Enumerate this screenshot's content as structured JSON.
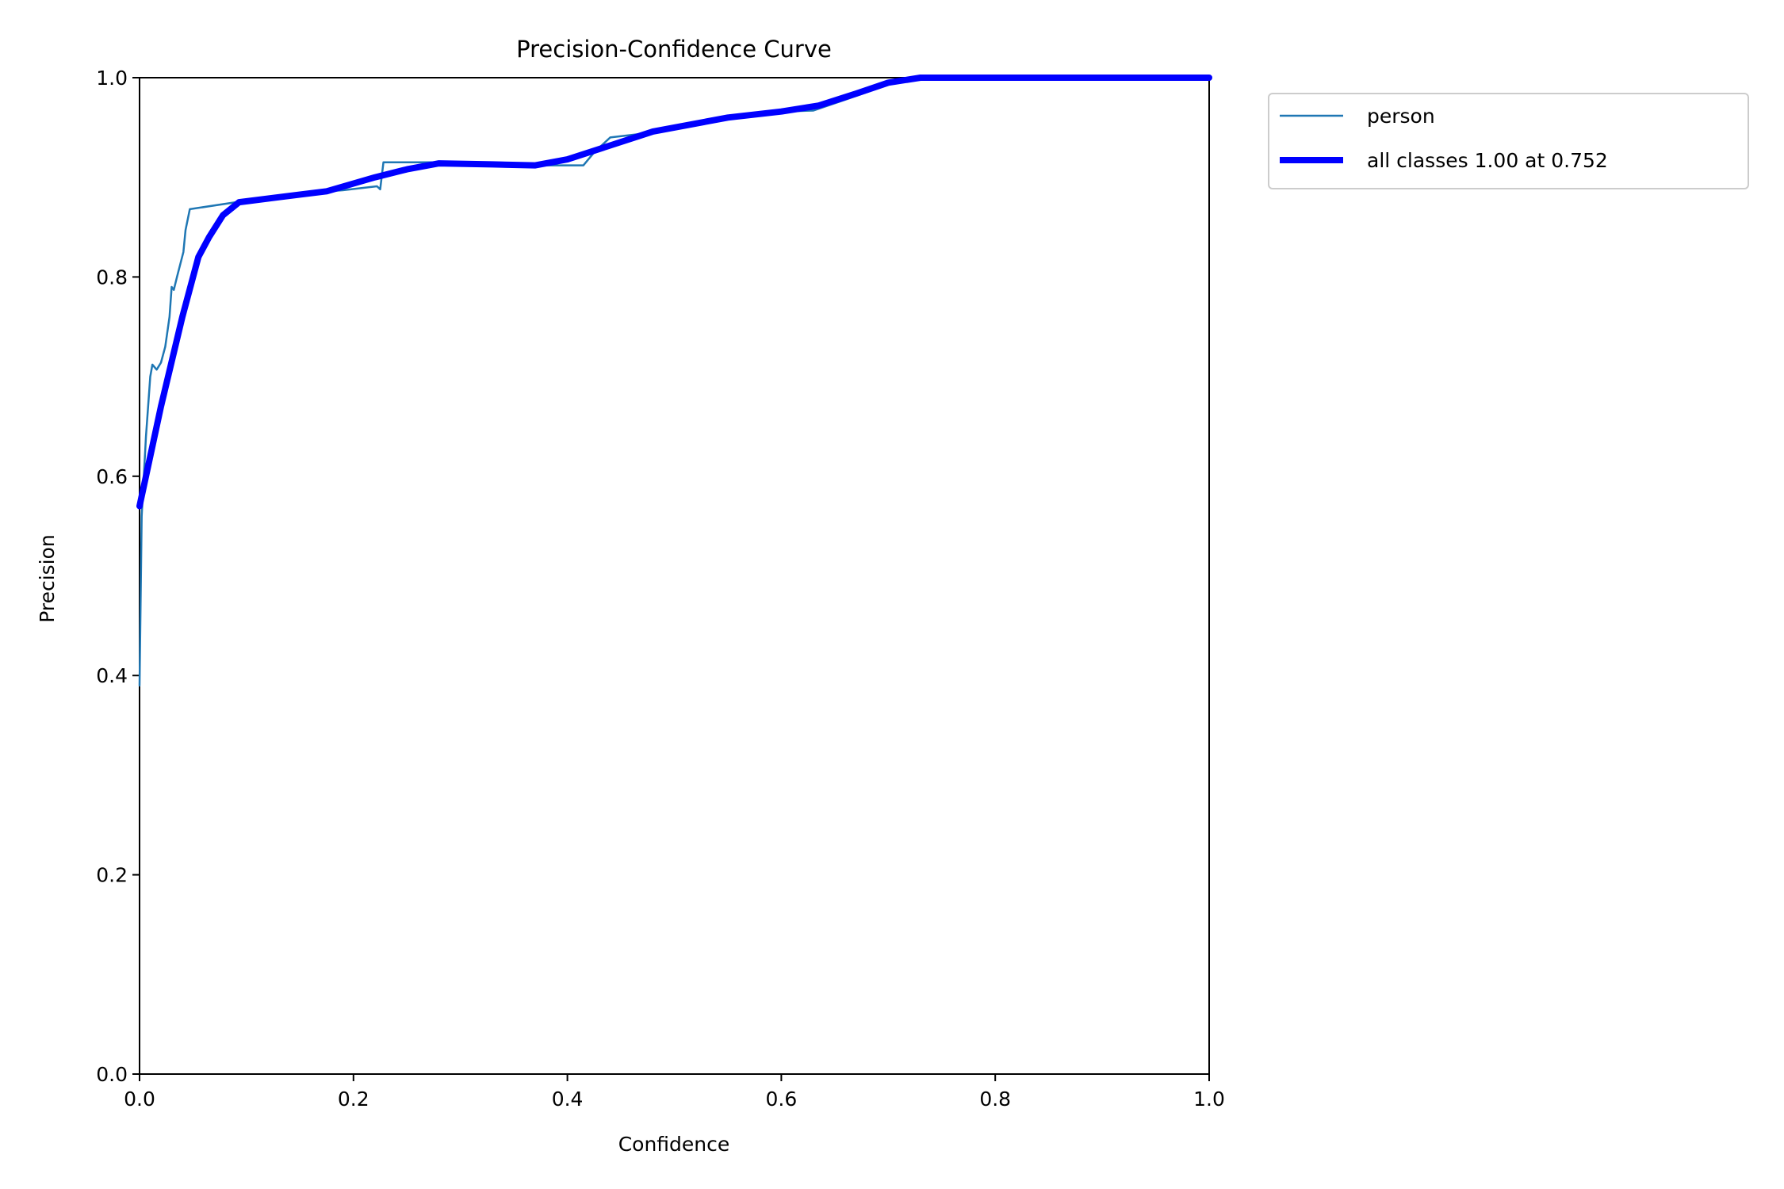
{
  "chart_data": {
    "type": "line",
    "title": "Precision-Confidence Curve",
    "xlabel": "Confidence",
    "ylabel": "Precision",
    "xlim": [
      0,
      1
    ],
    "ylim": [
      0,
      1
    ],
    "x_ticks": [
      "0.0",
      "0.2",
      "0.4",
      "0.6",
      "0.8",
      "1.0"
    ],
    "y_ticks": [
      "0.0",
      "0.2",
      "0.4",
      "0.6",
      "0.8",
      "1.0"
    ],
    "grid": false,
    "legend_position": "outside-upper-right",
    "series": [
      {
        "name": "person",
        "color": "#1f77b4",
        "line_weight": "thin",
        "points": [
          [
            0.0,
            0.39
          ],
          [
            0.002,
            0.56
          ],
          [
            0.006,
            0.64
          ],
          [
            0.01,
            0.7
          ],
          [
            0.012,
            0.712
          ],
          [
            0.016,
            0.707
          ],
          [
            0.02,
            0.714
          ],
          [
            0.024,
            0.73
          ],
          [
            0.028,
            0.76
          ],
          [
            0.03,
            0.79
          ],
          [
            0.032,
            0.787
          ],
          [
            0.035,
            0.8
          ],
          [
            0.041,
            0.825
          ],
          [
            0.043,
            0.847
          ],
          [
            0.047,
            0.868
          ],
          [
            0.09,
            0.875
          ],
          [
            0.15,
            0.884
          ],
          [
            0.19,
            0.887
          ],
          [
            0.222,
            0.891
          ],
          [
            0.225,
            0.888
          ],
          [
            0.228,
            0.915
          ],
          [
            0.3,
            0.915
          ],
          [
            0.37,
            0.912
          ],
          [
            0.415,
            0.912
          ],
          [
            0.425,
            0.925
          ],
          [
            0.44,
            0.94
          ],
          [
            0.48,
            0.945
          ],
          [
            0.55,
            0.96
          ],
          [
            0.6,
            0.966
          ],
          [
            0.63,
            0.967
          ],
          [
            0.66,
            0.978
          ],
          [
            0.7,
            0.993
          ],
          [
            0.73,
            1.0
          ],
          [
            0.8,
            1.0
          ],
          [
            1.0,
            1.0
          ]
        ]
      },
      {
        "name": "all classes 1.00 at 0.752",
        "color": "#0000ff",
        "line_weight": "thick",
        "points": [
          [
            0.0,
            0.57
          ],
          [
            0.02,
            0.67
          ],
          [
            0.04,
            0.76
          ],
          [
            0.055,
            0.82
          ],
          [
            0.065,
            0.84
          ],
          [
            0.078,
            0.862
          ],
          [
            0.093,
            0.875
          ],
          [
            0.13,
            0.88
          ],
          [
            0.175,
            0.886
          ],
          [
            0.22,
            0.9
          ],
          [
            0.25,
            0.908
          ],
          [
            0.28,
            0.914
          ],
          [
            0.33,
            0.913
          ],
          [
            0.37,
            0.912
          ],
          [
            0.4,
            0.918
          ],
          [
            0.44,
            0.932
          ],
          [
            0.48,
            0.946
          ],
          [
            0.55,
            0.96
          ],
          [
            0.6,
            0.966
          ],
          [
            0.635,
            0.972
          ],
          [
            0.67,
            0.984
          ],
          [
            0.7,
            0.995
          ],
          [
            0.73,
            1.0
          ],
          [
            0.8,
            1.0
          ],
          [
            1.0,
            1.0
          ]
        ]
      }
    ],
    "legend": [
      {
        "label": "person"
      },
      {
        "label": "all classes 1.00 at 0.752"
      }
    ]
  }
}
